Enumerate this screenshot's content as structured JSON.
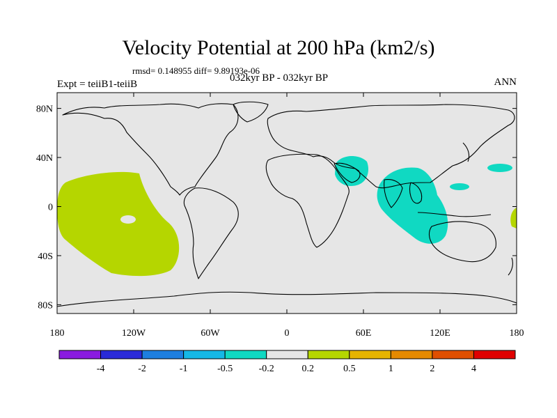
{
  "title": "Velocity Potential at 200 hPa (km2/s)",
  "stats_line": "rmsd= 0.148955 diff= 9.89193e-06",
  "left_label": "Expt = teiiB1-teiiB",
  "center_label": "032kyr BP - 032kyr BP",
  "right_label": "ANN",
  "lat_ticks": [
    {
      "label": "80N",
      "lat": 80
    },
    {
      "label": "40N",
      "lat": 40
    },
    {
      "label": "0",
      "lat": 0
    },
    {
      "label": "40S",
      "lat": -40
    },
    {
      "label": "80S",
      "lat": -80
    }
  ],
  "lon_ticks": [
    {
      "label": "180",
      "lon": -180
    },
    {
      "label": "120W",
      "lon": -120
    },
    {
      "label": "60W",
      "lon": -60
    },
    {
      "label": "0",
      "lon": 0
    },
    {
      "label": "60E",
      "lon": 60
    },
    {
      "label": "120E",
      "lon": 120
    },
    {
      "label": "180",
      "lon": 180
    }
  ],
  "colorbar": {
    "colors": [
      "#8a1be0",
      "#2a2ad8",
      "#1e7fe0",
      "#15b8e6",
      "#10d9c2",
      "#e6e6e6",
      "#b5d600",
      "#e6b400",
      "#e58a00",
      "#e04f00",
      "#e00000"
    ],
    "labels": [
      "-4",
      "-2",
      "-1",
      "-0.5",
      "-0.2",
      "0.2",
      "0.5",
      "1",
      "2",
      "4"
    ]
  },
  "colors": {
    "background": "#e6e6e6",
    "positive_fill": "#b5d600",
    "negative_fill": "#10d9c2",
    "coast": "#000000"
  }
}
